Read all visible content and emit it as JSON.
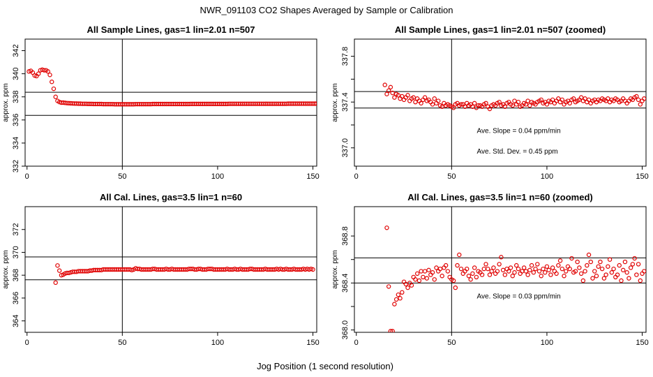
{
  "figure": {
    "title": "NWR_091103  CO2 Shapes Averaged by Sample or Calibration",
    "xlabel": "Jog Position (1 second resolution)",
    "colors": {
      "points": "#e00000",
      "lines": "#000000",
      "background": "#ffffff"
    }
  },
  "chart_data": [
    {
      "type": "scatter",
      "title": "All Sample Lines, gas=1 lin=2.01 n=507",
      "ylabel": "approx. ppm",
      "xlim": [
        -1,
        152
      ],
      "ylim": [
        332,
        343
      ],
      "xticks": [
        0,
        50,
        100,
        150
      ],
      "yticks": [
        332,
        334,
        336,
        338,
        340,
        342
      ],
      "ytick_labels": [
        "332",
        "334",
        "336",
        "338",
        "340",
        "342"
      ],
      "hlines": [
        336.4,
        338.4
      ],
      "vlines": [
        50
      ],
      "annotations": [],
      "x_start": 1,
      "y": [
        340.2,
        340.25,
        340.1,
        339.85,
        339.8,
        340.0,
        340.3,
        340.35,
        340.3,
        340.3,
        340.2,
        339.9,
        339.3,
        338.7,
        338.0,
        337.65,
        337.55,
        337.5,
        337.5,
        337.48,
        337.46,
        337.45,
        337.44,
        337.43,
        337.42,
        337.42,
        337.41,
        337.41,
        337.4,
        337.4,
        337.4,
        337.39,
        337.39,
        337.39,
        337.38,
        337.38,
        337.38,
        337.38,
        337.38,
        337.37,
        337.37,
        337.37,
        337.37,
        337.37,
        337.37,
        337.36,
        337.36,
        337.36,
        337.36,
        337.36,
        337.36,
        337.36,
        337.36,
        337.36,
        337.36,
        337.36,
        337.37,
        337.37,
        337.37,
        337.37,
        337.37,
        337.37,
        337.37,
        337.37,
        337.37,
        337.38,
        337.38,
        337.38,
        337.38,
        337.38,
        337.38,
        337.38,
        337.38,
        337.38,
        337.38,
        337.38,
        337.38,
        337.38,
        337.38,
        337.38,
        337.38,
        337.38,
        337.38,
        337.38,
        337.38,
        337.39,
        337.39,
        337.39,
        337.39,
        337.39,
        337.39,
        337.39,
        337.39,
        337.39,
        337.39,
        337.39,
        337.39,
        337.39,
        337.39,
        337.39,
        337.39,
        337.39,
        337.39,
        337.39,
        337.39,
        337.4,
        337.4,
        337.4,
        337.4,
        337.4,
        337.4,
        337.4,
        337.4,
        337.4,
        337.4,
        337.4,
        337.4,
        337.4,
        337.4,
        337.4,
        337.4,
        337.4,
        337.4,
        337.4,
        337.4,
        337.4,
        337.4,
        337.4,
        337.4,
        337.4,
        337.4,
        337.4,
        337.4,
        337.4,
        337.4,
        337.4,
        337.41,
        337.41,
        337.41,
        337.41,
        337.41,
        337.41,
        337.41,
        337.41,
        337.41,
        337.41,
        337.41,
        337.41,
        337.41,
        337.41,
        337.41,
        337.42,
        337.42,
        337.42,
        337.42,
        337.42
      ]
    },
    {
      "type": "scatter",
      "title": "All Sample Lines, gas=1 lin=2.01 n=507 (zoomed)",
      "ylabel": "approx. ppm",
      "xlim": [
        -1,
        152
      ],
      "ylim": [
        336.84,
        337.95
      ],
      "xticks": [
        0,
        50,
        100,
        150
      ],
      "yticks": [
        337.0,
        337.2,
        337.4,
        337.6,
        337.8
      ],
      "ytick_labels": [
        "337.0",
        "",
        "337.4",
        "",
        "337.8"
      ],
      "hlines": [
        337.348,
        337.492
      ],
      "vlines": [
        50
      ],
      "annotations": [
        "Ave. Slope =  0.04  ppm/min",
        "Ave. Std. Dev. =  0.45  ppm"
      ],
      "x_start": 15,
      "y": [
        337.55,
        337.47,
        337.5,
        337.53,
        337.48,
        337.44,
        337.47,
        337.46,
        337.43,
        337.45,
        337.42,
        337.44,
        337.46,
        337.41,
        337.43,
        337.44,
        337.4,
        337.43,
        337.41,
        337.39,
        337.42,
        337.44,
        337.41,
        337.42,
        337.4,
        337.38,
        337.43,
        337.39,
        337.41,
        337.37,
        337.36,
        337.39,
        337.37,
        337.38,
        337.37,
        337.36,
        337.35,
        337.38,
        337.39,
        337.37,
        337.38,
        337.38,
        337.36,
        337.39,
        337.37,
        337.38,
        337.36,
        337.39,
        337.35,
        337.37,
        337.37,
        337.36,
        337.38,
        337.39,
        337.36,
        337.34,
        337.37,
        337.38,
        337.37,
        337.39,
        337.4,
        337.37,
        337.38,
        337.36,
        337.39,
        337.4,
        337.38,
        337.37,
        337.41,
        337.38,
        337.4,
        337.36,
        337.37,
        337.39,
        337.38,
        337.41,
        337.37,
        337.4,
        337.39,
        337.38,
        337.4,
        337.41,
        337.42,
        337.39,
        337.4,
        337.38,
        337.41,
        337.4,
        337.42,
        337.39,
        337.41,
        337.43,
        337.4,
        337.42,
        337.38,
        337.4,
        337.41,
        337.39,
        337.42,
        337.43,
        337.4,
        337.41,
        337.42,
        337.44,
        337.41,
        337.43,
        337.4,
        337.42,
        337.39,
        337.41,
        337.42,
        337.4,
        337.42,
        337.41,
        337.43,
        337.42,
        337.41,
        337.43,
        337.4,
        337.42,
        337.41,
        337.43,
        337.42,
        337.4,
        337.41,
        337.43,
        337.41,
        337.39,
        337.41,
        337.43,
        337.42,
        337.44,
        337.45,
        337.42,
        337.38,
        337.41,
        337.43
      ]
    },
    {
      "type": "scatter",
      "title": "All Cal. Lines, gas=3.5 lin=1 n=60",
      "ylabel": "approx. ppm",
      "xlim": [
        -1,
        152
      ],
      "ylim": [
        363,
        374
      ],
      "xticks": [
        0,
        50,
        100,
        150
      ],
      "yticks": [
        364,
        366,
        368,
        370,
        372
      ],
      "ytick_labels": [
        "364",
        "366",
        "368",
        "370",
        "372"
      ],
      "hlines": [
        367.6,
        369.6
      ],
      "vlines": [
        50
      ],
      "annotations": [],
      "x_start": 15,
      "y": [
        367.35,
        368.85,
        368.4,
        368.0,
        368.05,
        368.15,
        368.2,
        368.2,
        368.25,
        368.3,
        368.3,
        368.3,
        368.35,
        368.35,
        368.35,
        368.35,
        368.35,
        368.35,
        368.4,
        368.4,
        368.45,
        368.45,
        368.45,
        368.45,
        368.45,
        368.5,
        368.5,
        368.5,
        368.5,
        368.5,
        368.5,
        368.5,
        368.5,
        368.5,
        368.5,
        368.5,
        368.5,
        368.5,
        368.5,
        368.5,
        368.45,
        368.5,
        368.6,
        368.55,
        368.55,
        368.5,
        368.5,
        368.5,
        368.5,
        368.5,
        368.5,
        368.55,
        368.55,
        368.5,
        368.5,
        368.5,
        368.5,
        368.5,
        368.55,
        368.5,
        368.5,
        368.55,
        368.5,
        368.5,
        368.5,
        368.5,
        368.5,
        368.5,
        368.5,
        368.5,
        368.55,
        368.55,
        368.55,
        368.5,
        368.5,
        368.55,
        368.55,
        368.5,
        368.5,
        368.5,
        368.55,
        368.55,
        368.55,
        368.5,
        368.5,
        368.5,
        368.5,
        368.5,
        368.5,
        368.5,
        368.55,
        368.5,
        368.5,
        368.5,
        368.55,
        368.5,
        368.5,
        368.55,
        368.5,
        368.5,
        368.5,
        368.5,
        368.55,
        368.55,
        368.5,
        368.5,
        368.5,
        368.5,
        368.5,
        368.5,
        368.55,
        368.5,
        368.5,
        368.5,
        368.5,
        368.5,
        368.55,
        368.5,
        368.55,
        368.5,
        368.5,
        368.55,
        368.5,
        368.5,
        368.5,
        368.55,
        368.5,
        368.5,
        368.5,
        368.5,
        368.55,
        368.5,
        368.55,
        368.5,
        368.55,
        368.5
      ]
    },
    {
      "type": "scatter",
      "title": "All Cal. Lines, gas=3.5 lin=1 n=60 (zoomed)",
      "ylabel": "approx. ppm",
      "xlim": [
        -1,
        152
      ],
      "ylim": [
        367.98,
        369.05
      ],
      "xticks": [
        0,
        50,
        100,
        150
      ],
      "yticks": [
        368.0,
        368.2,
        368.4,
        368.6,
        368.8
      ],
      "ytick_labels": [
        "368.0",
        "",
        "368.4",
        "",
        "368.8"
      ],
      "hlines": [
        368.4,
        368.614
      ],
      "vlines": [
        50
      ],
      "annotations": [
        "Ave. Slope =  0.03  ppm/min"
      ],
      "x_start": 16,
      "y": [
        368.87,
        368.37,
        367.99,
        367.99,
        368.22,
        368.26,
        368.3,
        368.27,
        368.32,
        368.41,
        368.39,
        368.36,
        368.4,
        368.38,
        368.45,
        368.43,
        368.48,
        368.42,
        368.5,
        368.45,
        368.5,
        368.44,
        368.51,
        368.47,
        368.49,
        368.43,
        368.53,
        368.5,
        368.52,
        368.46,
        368.53,
        368.55,
        368.5,
        368.45,
        368.43,
        368.42,
        368.36,
        368.55,
        368.64,
        368.52,
        368.48,
        368.5,
        368.52,
        368.46,
        368.43,
        368.48,
        368.53,
        368.45,
        368.5,
        368.49,
        368.47,
        368.52,
        368.56,
        368.52,
        368.47,
        368.5,
        368.53,
        368.48,
        368.5,
        368.56,
        368.62,
        368.51,
        368.47,
        368.52,
        368.5,
        368.53,
        368.46,
        368.49,
        368.55,
        368.52,
        368.48,
        368.5,
        368.53,
        368.5,
        368.47,
        368.51,
        368.55,
        368.49,
        368.52,
        368.56,
        368.5,
        368.46,
        368.52,
        368.49,
        368.54,
        368.51,
        368.47,
        368.53,
        368.5,
        368.48,
        368.55,
        368.59,
        368.52,
        368.46,
        368.5,
        368.54,
        368.52,
        368.61,
        368.49,
        368.5,
        368.58,
        368.53,
        368.48,
        368.42,
        368.5,
        368.55,
        368.64,
        368.58,
        368.44,
        368.5,
        368.46,
        368.54,
        368.58,
        368.52,
        368.44,
        368.47,
        368.54,
        368.6,
        368.49,
        368.52,
        368.45,
        368.47,
        368.55,
        368.42,
        368.51,
        368.58,
        368.49,
        368.44,
        368.53,
        368.56,
        368.61,
        368.47,
        368.56,
        368.42,
        368.48,
        368.5
      ]
    }
  ]
}
